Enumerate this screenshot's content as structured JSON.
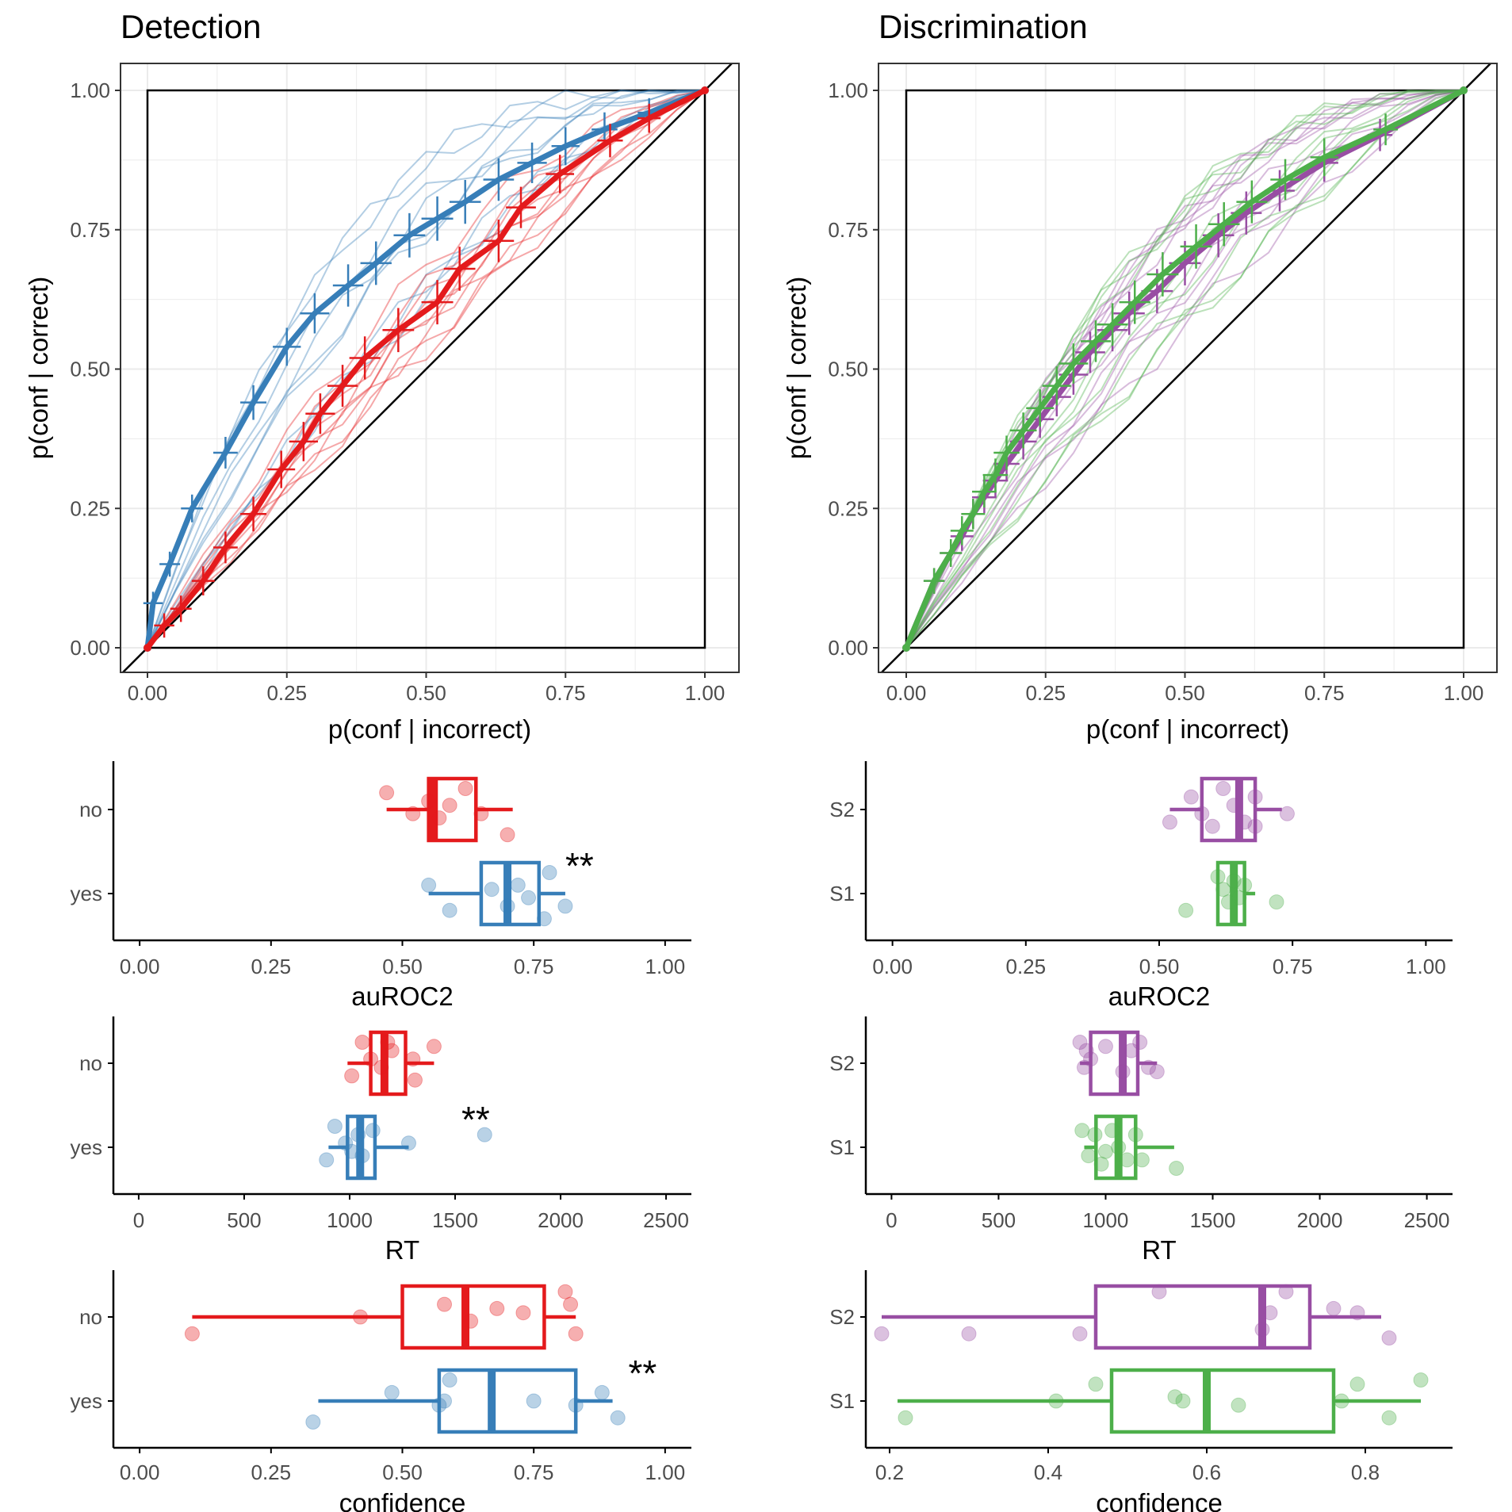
{
  "panels": {
    "detection": {
      "title": "Detection"
    },
    "discrimination": {
      "title": "Discrimination"
    }
  },
  "colors": {
    "red": "#e41a1c",
    "blue": "#377eb8",
    "purple": "#984ea3",
    "green": "#4daf4a",
    "grid": "#ebebeb",
    "tick_text": "#4d4d4d"
  },
  "chart_data": [
    {
      "id": "roc-detection",
      "type": "line",
      "title": "Detection",
      "xlabel": "p(conf | incorrect)",
      "ylabel": "p(conf | correct)",
      "xlim": [
        0,
        1
      ],
      "ylim": [
        0,
        1
      ],
      "ticks": [
        "0.00",
        "0.25",
        "0.50",
        "0.75",
        "1.00"
      ],
      "series": [
        {
          "name": "yes",
          "color": "blue",
          "x": [
            0,
            0.01,
            0.04,
            0.08,
            0.14,
            0.19,
            0.25,
            0.3,
            0.36,
            0.41,
            0.47,
            0.52,
            0.57,
            0.63,
            0.69,
            0.75,
            0.82,
            0.9,
            1.0
          ],
          "y": [
            0,
            0.08,
            0.15,
            0.25,
            0.35,
            0.44,
            0.54,
            0.6,
            0.65,
            0.69,
            0.74,
            0.77,
            0.8,
            0.84,
            0.87,
            0.9,
            0.93,
            0.96,
            1.0
          ]
        },
        {
          "name": "no",
          "color": "red",
          "x": [
            0,
            0.03,
            0.06,
            0.1,
            0.14,
            0.19,
            0.24,
            0.28,
            0.31,
            0.35,
            0.39,
            0.45,
            0.52,
            0.56,
            0.63,
            0.67,
            0.74,
            0.83,
            0.9,
            1.0
          ],
          "y": [
            0,
            0.04,
            0.07,
            0.12,
            0.18,
            0.24,
            0.32,
            0.37,
            0.42,
            0.47,
            0.52,
            0.57,
            0.62,
            0.68,
            0.73,
            0.79,
            0.85,
            0.91,
            0.95,
            1.0
          ]
        }
      ]
    },
    {
      "id": "roc-discrimination",
      "type": "line",
      "title": "Discrimination",
      "xlabel": "p(conf | incorrect)",
      "ylabel": "p(conf | correct)",
      "xlim": [
        0,
        1
      ],
      "ylim": [
        0,
        1
      ],
      "ticks": [
        "0.00",
        "0.25",
        "0.50",
        "0.75",
        "1.00"
      ],
      "series": [
        {
          "name": "S2",
          "color": "purple",
          "x": [
            0,
            0.05,
            0.08,
            0.1,
            0.12,
            0.14,
            0.16,
            0.18,
            0.21,
            0.24,
            0.27,
            0.3,
            0.33,
            0.37,
            0.4,
            0.45,
            0.5,
            0.56,
            0.61,
            0.67,
            0.75,
            0.85,
            1.0
          ],
          "y": [
            0,
            0.12,
            0.17,
            0.2,
            0.24,
            0.27,
            0.3,
            0.33,
            0.37,
            0.41,
            0.45,
            0.49,
            0.53,
            0.57,
            0.6,
            0.64,
            0.69,
            0.74,
            0.78,
            0.82,
            0.87,
            0.92,
            1.0
          ]
        },
        {
          "name": "S1",
          "color": "green",
          "x": [
            0,
            0.05,
            0.08,
            0.1,
            0.12,
            0.14,
            0.16,
            0.18,
            0.21,
            0.24,
            0.27,
            0.3,
            0.34,
            0.37,
            0.41,
            0.46,
            0.52,
            0.57,
            0.62,
            0.68,
            0.75,
            0.86,
            1.0
          ],
          "y": [
            0,
            0.12,
            0.17,
            0.21,
            0.24,
            0.28,
            0.31,
            0.35,
            0.39,
            0.43,
            0.47,
            0.51,
            0.55,
            0.58,
            0.62,
            0.67,
            0.72,
            0.76,
            0.8,
            0.84,
            0.88,
            0.93,
            1.0
          ]
        }
      ]
    },
    {
      "id": "box-det-auroc2",
      "type": "boxplot",
      "xlabel": "auROC2",
      "xlim": [
        -0.05,
        1.05
      ],
      "xticks": [
        0,
        0.25,
        0.5,
        0.75,
        1.0
      ],
      "xtick_labels": [
        "0.00",
        "0.25",
        "0.50",
        "0.75",
        "1.00"
      ],
      "significance": "**",
      "sig_at": 0.81,
      "groups": [
        {
          "label": "no",
          "color": "red",
          "min": 0.47,
          "q1": 0.55,
          "median": 0.56,
          "q3": 0.64,
          "max": 0.71,
          "points": [
            [
              0.47,
              0.2
            ],
            [
              0.52,
              -0.05
            ],
            [
              0.55,
              0.1
            ],
            [
              0.57,
              -0.1
            ],
            [
              0.59,
              0.05
            ],
            [
              0.62,
              0.25
            ],
            [
              0.65,
              -0.05
            ],
            [
              0.7,
              -0.3
            ]
          ]
        },
        {
          "label": "yes",
          "color": "blue",
          "min": 0.55,
          "q1": 0.65,
          "median": 0.7,
          "q3": 0.76,
          "max": 0.81,
          "points": [
            [
              0.55,
              0.1
            ],
            [
              0.59,
              -0.2
            ],
            [
              0.67,
              0.05
            ],
            [
              0.7,
              -0.15
            ],
            [
              0.72,
              0.1
            ],
            [
              0.74,
              -0.05
            ],
            [
              0.77,
              -0.3
            ],
            [
              0.78,
              0.25
            ],
            [
              0.81,
              -0.15
            ]
          ]
        }
      ]
    },
    {
      "id": "box-dis-auroc2",
      "type": "boxplot",
      "xlabel": "auROC2",
      "xlim": [
        -0.05,
        1.05
      ],
      "xticks": [
        0,
        0.25,
        0.5,
        0.75,
        1.0
      ],
      "xtick_labels": [
        "0.00",
        "0.25",
        "0.50",
        "0.75",
        "1.00"
      ],
      "groups": [
        {
          "label": "S2",
          "color": "purple",
          "min": 0.52,
          "q1": 0.58,
          "median": 0.65,
          "q3": 0.68,
          "max": 0.73,
          "points": [
            [
              0.52,
              -0.15
            ],
            [
              0.56,
              0.15
            ],
            [
              0.58,
              -0.05
            ],
            [
              0.6,
              -0.2
            ],
            [
              0.62,
              0.25
            ],
            [
              0.64,
              0.05
            ],
            [
              0.66,
              -0.15
            ],
            [
              0.68,
              0.15
            ],
            [
              0.68,
              -0.2
            ],
            [
              0.74,
              -0.05
            ]
          ]
        },
        {
          "label": "S1",
          "color": "green",
          "min": 0.61,
          "q1": 0.61,
          "median": 0.64,
          "q3": 0.66,
          "max": 0.68,
          "points": [
            [
              0.55,
              -0.2
            ],
            [
              0.61,
              0.2
            ],
            [
              0.62,
              0.05
            ],
            [
              0.63,
              -0.1
            ],
            [
              0.64,
              0.15
            ],
            [
              0.65,
              -0.05
            ],
            [
              0.66,
              0.1
            ],
            [
              0.72,
              -0.1
            ]
          ]
        }
      ]
    },
    {
      "id": "box-det-rt",
      "type": "boxplot",
      "xlabel": "RT",
      "xlim": [
        -120,
        2620
      ],
      "xticks": [
        0,
        500,
        1000,
        1500,
        2000,
        2500
      ],
      "xtick_labels": [
        "0",
        "500",
        "1000",
        "1500",
        "2000",
        "2500"
      ],
      "significance": "**",
      "sig_at": 1530,
      "groups": [
        {
          "label": "no",
          "color": "red",
          "min": 990,
          "q1": 1100,
          "median": 1165,
          "q3": 1265,
          "max": 1400,
          "points": [
            [
              1010,
              -0.15
            ],
            [
              1060,
              0.25
            ],
            [
              1100,
              0.05
            ],
            [
              1150,
              -0.05
            ],
            [
              1180,
              0.25
            ],
            [
              1200,
              0.15
            ],
            [
              1300,
              0.05
            ],
            [
              1310,
              -0.2
            ],
            [
              1400,
              0.2
            ]
          ]
        },
        {
          "label": "yes",
          "color": "blue",
          "min": 900,
          "q1": 990,
          "median": 1050,
          "q3": 1120,
          "max": 1280,
          "points": [
            [
              890,
              -0.15
            ],
            [
              930,
              0.25
            ],
            [
              980,
              0.05
            ],
            [
              1010,
              -0.05
            ],
            [
              1040,
              0.15
            ],
            [
              1060,
              -0.1
            ],
            [
              1110,
              0.2
            ],
            [
              1280,
              0.05
            ],
            [
              1640,
              0.15
            ]
          ]
        }
      ]
    },
    {
      "id": "box-dis-rt",
      "type": "boxplot",
      "xlabel": "RT",
      "xlim": [
        -120,
        2620
      ],
      "xticks": [
        0,
        500,
        1000,
        1500,
        2000,
        2500
      ],
      "xtick_labels": [
        "0",
        "500",
        "1000",
        "1500",
        "2000",
        "2500"
      ],
      "groups": [
        {
          "label": "S2",
          "color": "purple",
          "min": 880,
          "q1": 930,
          "median": 1080,
          "q3": 1150,
          "max": 1240,
          "points": [
            [
              880,
              0.25
            ],
            [
              900,
              -0.05
            ],
            [
              910,
              0.15
            ],
            [
              930,
              0.05
            ],
            [
              1000,
              0.2
            ],
            [
              1080,
              -0.1
            ],
            [
              1120,
              0.15
            ],
            [
              1160,
              0.25
            ],
            [
              1200,
              -0.05
            ],
            [
              1240,
              -0.1
            ]
          ]
        },
        {
          "label": "S1",
          "color": "green",
          "min": 900,
          "q1": 955,
          "median": 1060,
          "q3": 1140,
          "max": 1320,
          "points": [
            [
              890,
              0.2
            ],
            [
              920,
              -0.1
            ],
            [
              950,
              0.15
            ],
            [
              980,
              -0.2
            ],
            [
              1000,
              -0.05
            ],
            [
              1030,
              0.2
            ],
            [
              1060,
              0.0
            ],
            [
              1100,
              -0.15
            ],
            [
              1140,
              0.15
            ],
            [
              1170,
              -0.15
            ],
            [
              1330,
              -0.25
            ]
          ]
        }
      ]
    },
    {
      "id": "box-det-conf",
      "type": "boxplot",
      "xlabel": "confidence",
      "xlim": [
        -0.05,
        1.05
      ],
      "xticks": [
        0,
        0.25,
        0.5,
        0.75,
        1.0
      ],
      "xtick_labels": [
        "0.00",
        "0.25",
        "0.50",
        "0.75",
        "1.00"
      ],
      "significance": "**",
      "sig_at": 0.93,
      "groups": [
        {
          "label": "no",
          "color": "red",
          "min": 0.1,
          "q1": 0.5,
          "median": 0.62,
          "q3": 0.77,
          "max": 0.83,
          "points": [
            [
              0.1,
              -0.2
            ],
            [
              0.42,
              0.0
            ],
            [
              0.58,
              0.15
            ],
            [
              0.63,
              -0.05
            ],
            [
              0.68,
              0.1
            ],
            [
              0.73,
              0.05
            ],
            [
              0.81,
              0.3
            ],
            [
              0.82,
              0.15
            ],
            [
              0.83,
              -0.2
            ]
          ]
        },
        {
          "label": "yes",
          "color": "blue",
          "min": 0.34,
          "q1": 0.57,
          "median": 0.67,
          "q3": 0.83,
          "max": 0.9,
          "points": [
            [
              0.33,
              -0.25
            ],
            [
              0.48,
              0.1
            ],
            [
              0.57,
              -0.05
            ],
            [
              0.58,
              0.0
            ],
            [
              0.59,
              0.25
            ],
            [
              0.75,
              0.0
            ],
            [
              0.83,
              -0.05
            ],
            [
              0.88,
              0.1
            ],
            [
              0.91,
              -0.2
            ]
          ]
        }
      ]
    },
    {
      "id": "box-dis-conf",
      "type": "boxplot",
      "xlabel": "confidence",
      "xlim": [
        0.17,
        0.91
      ],
      "xticks": [
        0.2,
        0.4,
        0.6,
        0.8
      ],
      "xtick_labels": [
        "0.2",
        "0.4",
        "0.6",
        "0.8"
      ],
      "groups": [
        {
          "label": "S2",
          "color": "purple",
          "min": 0.19,
          "q1": 0.46,
          "median": 0.67,
          "q3": 0.73,
          "max": 0.82,
          "points": [
            [
              0.19,
              -0.2
            ],
            [
              0.3,
              -0.2
            ],
            [
              0.44,
              -0.2
            ],
            [
              0.54,
              0.3
            ],
            [
              0.67,
              -0.15
            ],
            [
              0.68,
              0.05
            ],
            [
              0.7,
              0.3
            ],
            [
              0.76,
              0.1
            ],
            [
              0.79,
              0.05
            ],
            [
              0.83,
              -0.25
            ]
          ]
        },
        {
          "label": "S1",
          "color": "green",
          "min": 0.21,
          "q1": 0.48,
          "median": 0.6,
          "q3": 0.76,
          "max": 0.87,
          "points": [
            [
              0.22,
              -0.2
            ],
            [
              0.41,
              0.0
            ],
            [
              0.46,
              0.2
            ],
            [
              0.56,
              0.05
            ],
            [
              0.57,
              0.0
            ],
            [
              0.64,
              -0.05
            ],
            [
              0.77,
              0.0
            ],
            [
              0.79,
              0.2
            ],
            [
              0.83,
              -0.2
            ],
            [
              0.87,
              0.25
            ]
          ]
        }
      ]
    }
  ]
}
